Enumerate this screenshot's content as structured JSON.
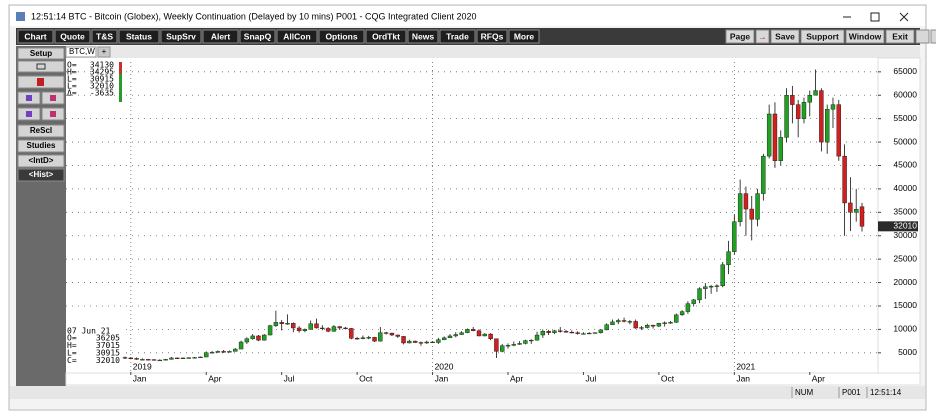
{
  "window": {
    "title": "12:51:14  BTC - Bitcoin (Globex), Weekly Continuation (Delayed by 10 mins)  P001 - CQG Integrated Client 2020"
  },
  "toolbar": {
    "left": [
      "Chart",
      "Quote",
      "T&S",
      "Status",
      "SupSrv",
      "Alert",
      "SnapQ",
      "AllCon",
      "Options",
      "OrdTkt",
      "News",
      "Trade",
      "RFQs",
      "More"
    ],
    "right": [
      "Page",
      "→",
      "Save",
      "Support",
      "Window",
      "Exit"
    ]
  },
  "sidebar": {
    "setup": "Setup",
    "rescale": "ReScl",
    "studies": "Studies",
    "intraday": "<IntD>",
    "history": "<Hist>"
  },
  "tab": {
    "label": "BTC,W",
    "add": "+"
  },
  "info_box": {
    "rows": [
      [
        "O=",
        34130
      ],
      [
        "H=",
        34295
      ],
      [
        "L=",
        30915
      ],
      [
        "L=",
        32010
      ],
      [
        "Δ=",
        -3635
      ]
    ]
  },
  "bar_box": {
    "date": "07 Jun 21",
    "rows": [
      [
        "O=",
        36205
      ],
      [
        "H=",
        37015
      ],
      [
        "L=",
        30915
      ],
      [
        "C=",
        32010
      ]
    ]
  },
  "status_bar": [
    "NUM",
    "P001",
    "12:51:14"
  ],
  "chart_data": {
    "type": "candlestick",
    "up_color": "#22a022",
    "down_color": "#d02020",
    "ylim": [
      900,
      67100
    ],
    "yticks": [
      5000,
      10000,
      15000,
      20000,
      25000,
      30000,
      35000,
      40000,
      45000,
      50000,
      55000,
      60000,
      65000
    ],
    "grid": true,
    "last_price": 32010,
    "xticks": [
      {
        "value": 1,
        "label": "Jan"
      },
      {
        "value": 14,
        "label": "Apr"
      },
      {
        "value": 27,
        "label": "Jul"
      },
      {
        "value": 40,
        "label": "Oct"
      },
      {
        "value": 53,
        "label": "Jan"
      },
      {
        "value": 66,
        "label": "Apr"
      },
      {
        "value": 79,
        "label": "Jul"
      },
      {
        "value": 92,
        "label": "Oct"
      },
      {
        "value": 105,
        "label": "Jan"
      },
      {
        "value": 118,
        "label": "Apr"
      }
    ],
    "years": [
      {
        "value": 1,
        "label": "2019"
      },
      {
        "value": 53,
        "label": "2020"
      },
      {
        "value": 105,
        "label": "2021"
      }
    ],
    "ohlc": [
      [
        4000,
        4200,
        3700,
        3900
      ],
      [
        3900,
        4100,
        3600,
        3800
      ],
      [
        3800,
        4000,
        3500,
        3600
      ],
      [
        3600,
        3800,
        3500,
        3600
      ],
      [
        3600,
        3700,
        3400,
        3550
      ],
      [
        3550,
        3650,
        3350,
        3450
      ],
      [
        3450,
        3600,
        3350,
        3450
      ],
      [
        3450,
        3700,
        3400,
        3600
      ],
      [
        3600,
        4100,
        3550,
        3900
      ],
      [
        3900,
        4000,
        3700,
        3800
      ],
      [
        3800,
        4000,
        3700,
        3900
      ],
      [
        3900,
        4050,
        3800,
        3950
      ],
      [
        3950,
        4100,
        3850,
        4000
      ],
      [
        4000,
        4200,
        3900,
        4100
      ],
      [
        4100,
        5300,
        4100,
        5000
      ],
      [
        5000,
        5400,
        4900,
        5100
      ],
      [
        5100,
        5500,
        5000,
        5300
      ],
      [
        5300,
        5600,
        5000,
        5200
      ],
      [
        5200,
        5500,
        5100,
        5300
      ],
      [
        5300,
        6000,
        5300,
        5800
      ],
      [
        5800,
        7600,
        5800,
        7300
      ],
      [
        7300,
        8300,
        6900,
        8000
      ],
      [
        8000,
        9000,
        7800,
        8600
      ],
      [
        8600,
        8800,
        7500,
        7700
      ],
      [
        7700,
        9000,
        7600,
        8800
      ],
      [
        8800,
        11000,
        8700,
        10800
      ],
      [
        10800,
        14000,
        10500,
        11500
      ],
      [
        11500,
        12000,
        9800,
        11200
      ],
      [
        11200,
        13200,
        11000,
        11300
      ],
      [
        11300,
        11500,
        9400,
        10300
      ],
      [
        10300,
        10700,
        9300,
        9700
      ],
      [
        9700,
        10200,
        9400,
        10000
      ],
      [
        10000,
        11900,
        9900,
        11200
      ],
      [
        11200,
        12300,
        10200,
        10300
      ],
      [
        10300,
        10900,
        9800,
        10200
      ],
      [
        10200,
        10500,
        9400,
        9600
      ],
      [
        9600,
        10900,
        9500,
        10600
      ],
      [
        10600,
        10700,
        9900,
        10300
      ],
      [
        10300,
        10500,
        10000,
        10200
      ],
      [
        10200,
        10300,
        7900,
        8100
      ],
      [
        8100,
        8400,
        7800,
        8000
      ],
      [
        8000,
        8700,
        7900,
        8200
      ],
      [
        8200,
        8600,
        7900,
        8300
      ],
      [
        8300,
        8400,
        7300,
        7500
      ],
      [
        7500,
        10500,
        7400,
        9300
      ],
      [
        9300,
        9500,
        8900,
        9200
      ],
      [
        9200,
        9300,
        8600,
        8800
      ],
      [
        8800,
        8900,
        8200,
        8500
      ],
      [
        8500,
        8600,
        6800,
        7100
      ],
      [
        7100,
        7800,
        7000,
        7500
      ],
      [
        7500,
        7600,
        7100,
        7200
      ],
      [
        7200,
        7400,
        6500,
        7100
      ],
      [
        7100,
        7600,
        6900,
        7300
      ],
      [
        7300,
        7500,
        7100,
        7200
      ],
      [
        7200,
        8200,
        6900,
        7800
      ],
      [
        7800,
        8500,
        7700,
        8200
      ],
      [
        8200,
        9000,
        8200,
        8600
      ],
      [
        8600,
        9400,
        8300,
        8900
      ],
      [
        8900,
        9600,
        8800,
        9300
      ],
      [
        9300,
        10200,
        9200,
        10000
      ],
      [
        10000,
        10500,
        9600,
        9700
      ],
      [
        9700,
        10000,
        8500,
        8600
      ],
      [
        8600,
        9200,
        8500,
        9000
      ],
      [
        9000,
        9200,
        7700,
        8000
      ],
      [
        8000,
        8000,
        3900,
        5300
      ],
      [
        5300,
        6900,
        5100,
        6500
      ],
      [
        6500,
        7000,
        5900,
        6600
      ],
      [
        6600,
        7400,
        6400,
        6800
      ],
      [
        6800,
        7500,
        6700,
        7000
      ],
      [
        7000,
        7800,
        6800,
        7600
      ],
      [
        7600,
        7900,
        6900,
        7700
      ],
      [
        7700,
        9500,
        7600,
        8800
      ],
      [
        8800,
        10000,
        8200,
        9600
      ],
      [
        9600,
        9900,
        8800,
        9300
      ],
      [
        9300,
        9900,
        9000,
        9700
      ],
      [
        9700,
        10500,
        9300,
        9600
      ],
      [
        9600,
        9900,
        9300,
        9400
      ],
      [
        9400,
        9800,
        9200,
        9300
      ],
      [
        9300,
        9600,
        8900,
        9100
      ],
      [
        9100,
        9400,
        8900,
        9100
      ],
      [
        9100,
        9400,
        9000,
        9200
      ],
      [
        9200,
        9400,
        9100,
        9300
      ],
      [
        9300,
        9900,
        9100,
        9900
      ],
      [
        9900,
        11300,
        9800,
        11000
      ],
      [
        11000,
        12100,
        11000,
        11600
      ],
      [
        11600,
        12300,
        11100,
        11900
      ],
      [
        11900,
        12500,
        11500,
        11700
      ],
      [
        11700,
        12000,
        11100,
        11700
      ],
      [
        11700,
        12100,
        10100,
        10300
      ],
      [
        10300,
        10700,
        9900,
        10400
      ],
      [
        10400,
        11200,
        10200,
        10900
      ],
      [
        10900,
        11000,
        10200,
        10700
      ],
      [
        10700,
        11400,
        10500,
        11300
      ],
      [
        11300,
        11700,
        10600,
        11400
      ],
      [
        11400,
        11800,
        11200,
        11500
      ],
      [
        11500,
        13400,
        11400,
        13100
      ],
      [
        13100,
        14100,
        12900,
        13800
      ],
      [
        13800,
        16000,
        13300,
        15500
      ],
      [
        15500,
        16500,
        14900,
        16300
      ],
      [
        16300,
        19000,
        15600,
        18700
      ],
      [
        18700,
        19900,
        16500,
        19100
      ],
      [
        19100,
        19500,
        17600,
        19200
      ],
      [
        19200,
        19600,
        18000,
        19300
      ],
      [
        19300,
        24400,
        19000,
        23800
      ],
      [
        23800,
        28900,
        21800,
        26600
      ],
      [
        26600,
        34500,
        26000,
        33000
      ],
      [
        33000,
        42000,
        32000,
        39000
      ],
      [
        39000,
        40500,
        30000,
        35700
      ],
      [
        35700,
        38500,
        29000,
        33500
      ],
      [
        33500,
        40000,
        32000,
        39000
      ],
      [
        39000,
        47500,
        37500,
        47000
      ],
      [
        47000,
        58000,
        46500,
        56000
      ],
      [
        56000,
        58500,
        44500,
        46000
      ],
      [
        46000,
        52500,
        45000,
        51000
      ],
      [
        51000,
        61500,
        50000,
        60000
      ],
      [
        60000,
        62000,
        54000,
        58000
      ],
      [
        58000,
        59000,
        51000,
        55000
      ],
      [
        55000,
        59500,
        54000,
        58500
      ],
      [
        58500,
        61000,
        55500,
        60000
      ],
      [
        60000,
        65500,
        60000,
        61000
      ],
      [
        61000,
        61500,
        48000,
        50000
      ],
      [
        50000,
        58000,
        47500,
        57000
      ],
      [
        57000,
        59500,
        53000,
        58000
      ],
      [
        58000,
        59000,
        46000,
        47000
      ],
      [
        47000,
        49500,
        30000,
        37000
      ],
      [
        37000,
        42500,
        31000,
        35000
      ],
      [
        35000,
        40000,
        33000,
        35645
      ],
      [
        36205,
        37015,
        30915,
        32010
      ]
    ]
  }
}
